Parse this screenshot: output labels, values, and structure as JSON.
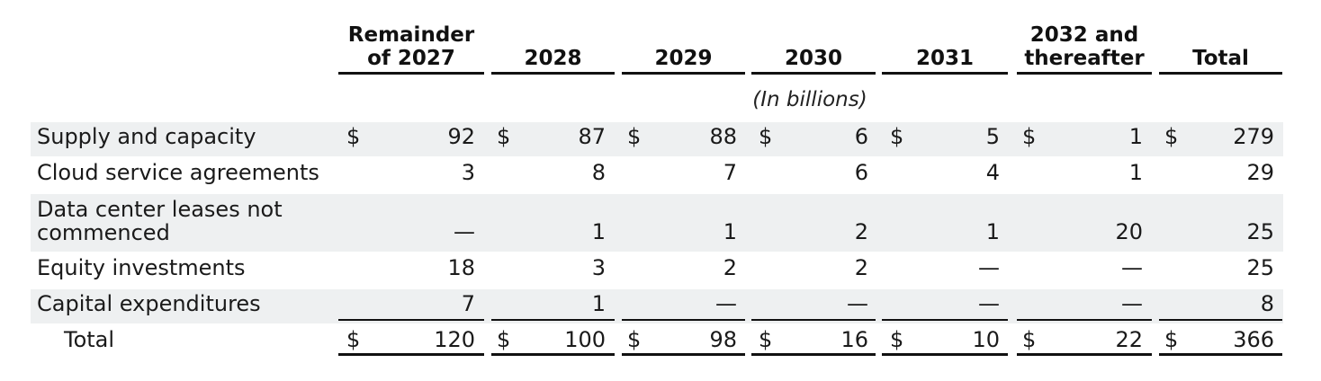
{
  "columns": [
    "Remainder of 2027",
    "2028",
    "2029",
    "2030",
    "2031",
    "2032 and thereafter",
    "Total"
  ],
  "column_lines": [
    [
      "Remainder",
      "of 2027"
    ],
    [
      "2028"
    ],
    [
      "2029"
    ],
    [
      "2030"
    ],
    [
      "2031"
    ],
    [
      "2032 and",
      "thereafter"
    ],
    [
      "Total"
    ]
  ],
  "units": "(In billions)",
  "currency": "$",
  "rows": [
    {
      "label": [
        "Supply and capacity"
      ],
      "values": [
        "92",
        "87",
        "88",
        "6",
        "5",
        "1",
        "279"
      ],
      "currency": true,
      "shaded": true
    },
    {
      "label": [
        "Cloud service agreements"
      ],
      "values": [
        "3",
        "8",
        "7",
        "6",
        "4",
        "1",
        "29"
      ],
      "currency": false,
      "shaded": false
    },
    {
      "label": [
        "Data center leases not",
        "commenced"
      ],
      "values": [
        "—",
        "1",
        "1",
        "2",
        "1",
        "20",
        "25"
      ],
      "currency": false,
      "shaded": true
    },
    {
      "label": [
        "Equity investments"
      ],
      "values": [
        "18",
        "3",
        "2",
        "2",
        "—",
        "—",
        "25"
      ],
      "currency": false,
      "shaded": false
    },
    {
      "label": [
        "Capital expenditures"
      ],
      "values": [
        "7",
        "1",
        "—",
        "—",
        "—",
        "—",
        "8"
      ],
      "currency": false,
      "shaded": true
    }
  ],
  "total": {
    "label": "Total",
    "values": [
      "120",
      "100",
      "98",
      "16",
      "10",
      "22",
      "366"
    ]
  }
}
